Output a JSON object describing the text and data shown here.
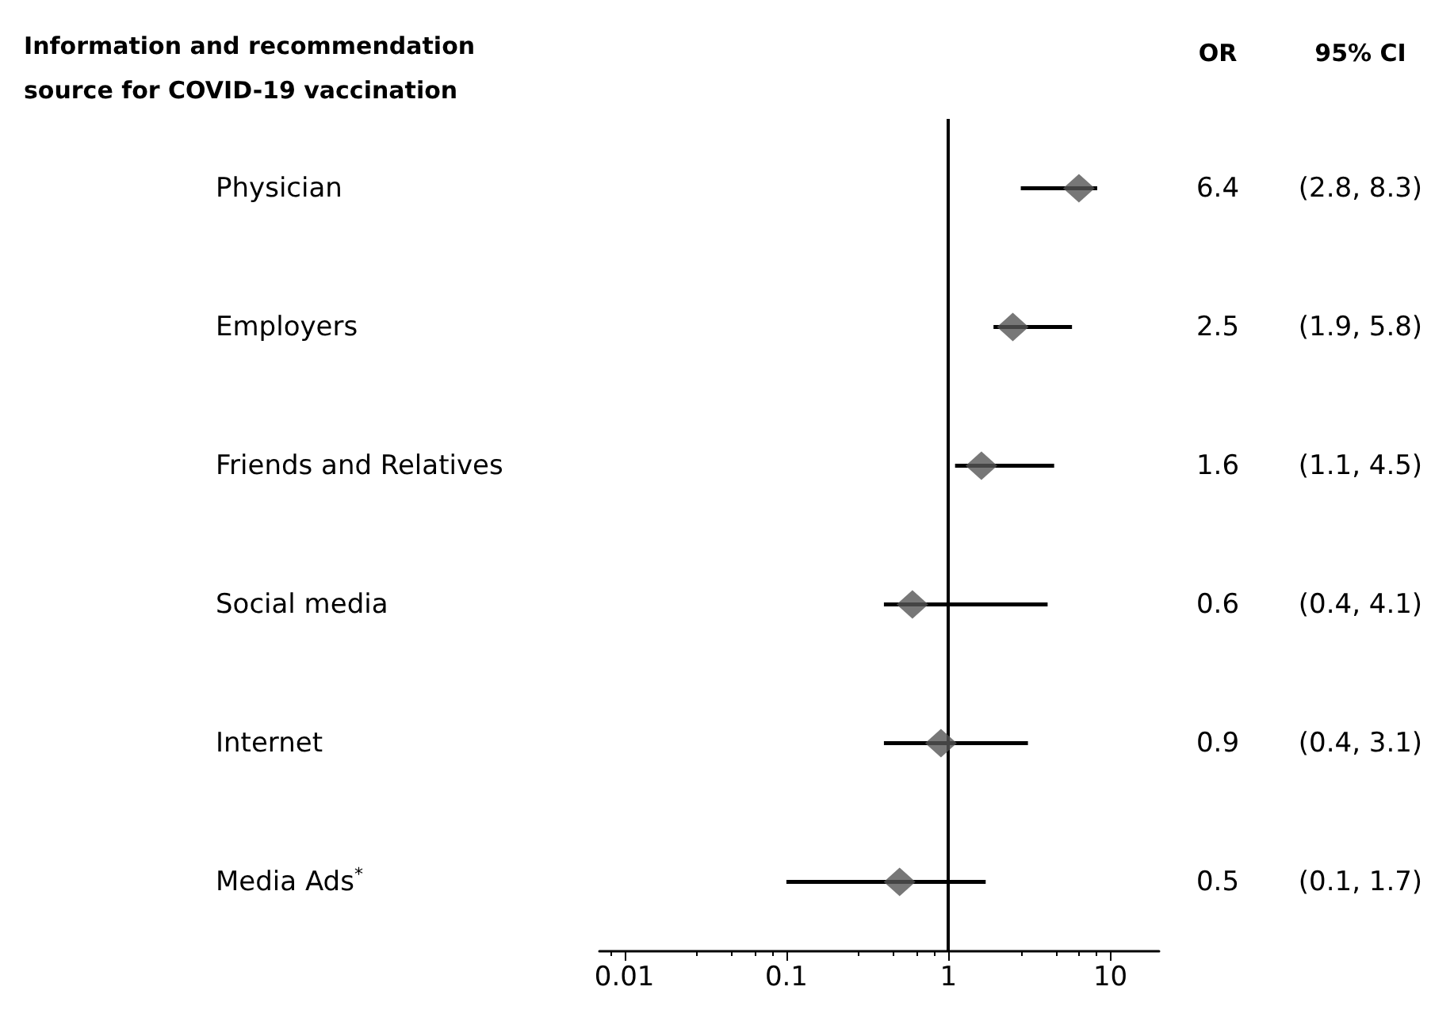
{
  "chart_data": {
    "type": "scatter",
    "orientation": "horizontal",
    "title": "Information and recommendation source for COVID-19 vaccination",
    "categories": [
      "Physician",
      "Employers",
      "Friends and Relatives",
      "Social media",
      "Internet",
      "Media Ads$^{*}$"
    ],
    "series": [
      {
        "color": "#555555",
        "values": [
          6.4,
          2.5,
          1.6,
          0.6,
          0.9,
          0.5
        ],
        "errors": [
          [
            2.8,
            8.3
          ],
          [
            1.9,
            5.8
          ],
          [
            1.1,
            4.5
          ],
          [
            0.4,
            4.1
          ],
          [
            0.4,
            3.1
          ],
          [
            0.1,
            1.7
          ]
        ]
      }
    ],
    "log": "x",
    "xlim": [
      0.007,
      20
    ],
    "xticks": [
      0.01,
      0.1,
      1,
      10
    ],
    "ref_lines": [
      {
        "axis": "x",
        "value": 1,
        "color": "#000000"
      }
    ],
    "annotations": [
      "OR",
      "95% CI",
      "(2.8, 8.3)",
      "(1.9, 5.8)",
      "(1.1, 4.5)",
      "(0.4, 4.1)",
      "(0.4, 3.1)",
      "(0.1, 1.7)"
    ],
    "data_labels": true,
    "marker": "diamond",
    "grid": false
  }
}
